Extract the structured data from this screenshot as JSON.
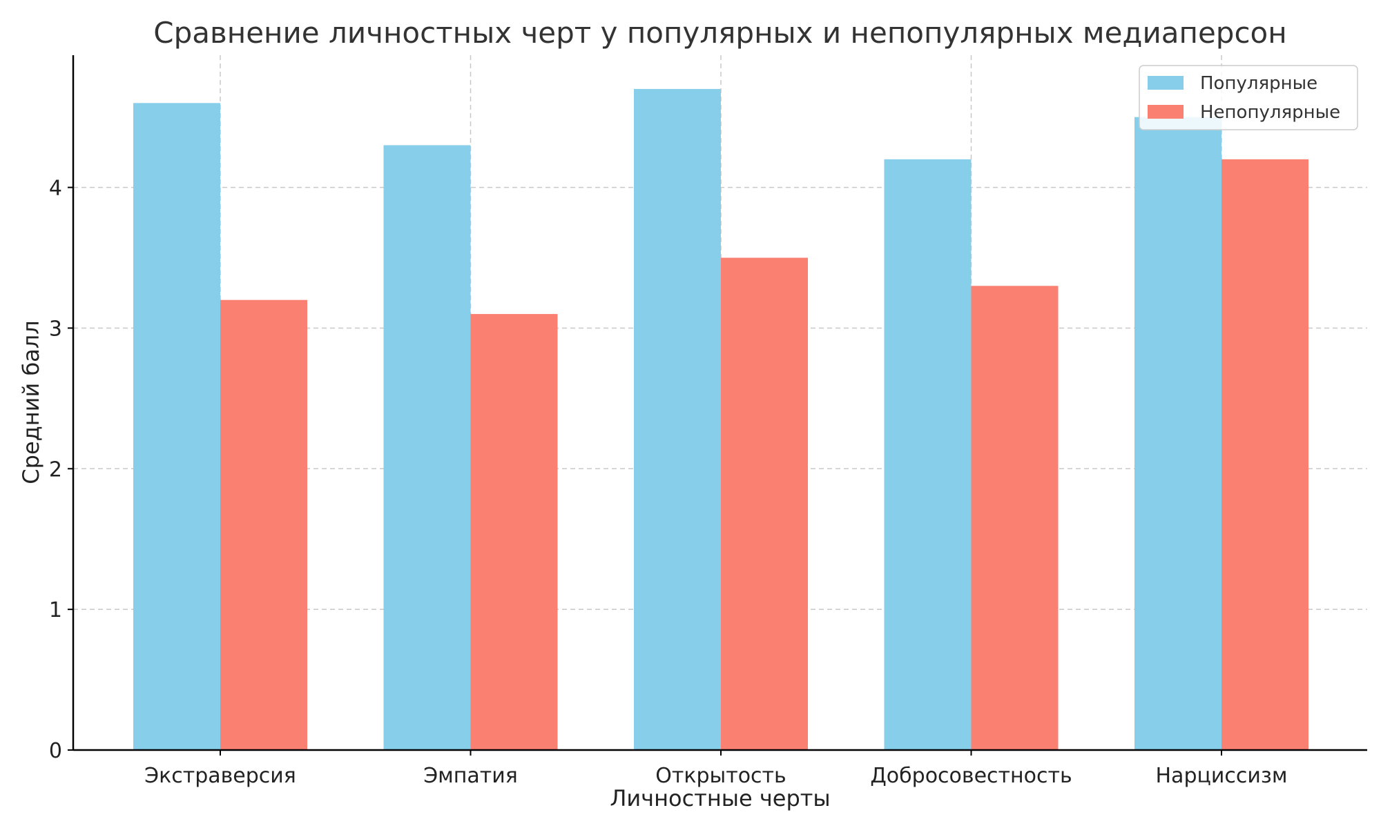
{
  "chart_data": {
    "type": "bar",
    "title": "Сравнение личностных черт у популярных и непопулярных медиаперсон",
    "xlabel": "Личностные черты",
    "ylabel": "Средний балл",
    "categories": [
      "Экстраверсия",
      "Эмпатия",
      "Открытость",
      "Добросовестность",
      "Нарциссизм"
    ],
    "series": [
      {
        "name": "Популярные",
        "values": [
          4.6,
          4.3,
          4.7,
          4.2,
          4.5
        ],
        "color": "#87CEEB"
      },
      {
        "name": "Непопулярные",
        "values": [
          3.2,
          3.1,
          3.5,
          3.3,
          4.2
        ],
        "color": "#FA8072"
      }
    ],
    "ylim": [
      0,
      4.94
    ],
    "yticks": [
      "0",
      "1",
      "2",
      "3",
      "4"
    ],
    "grid": true,
    "legend_position": "top-right"
  }
}
